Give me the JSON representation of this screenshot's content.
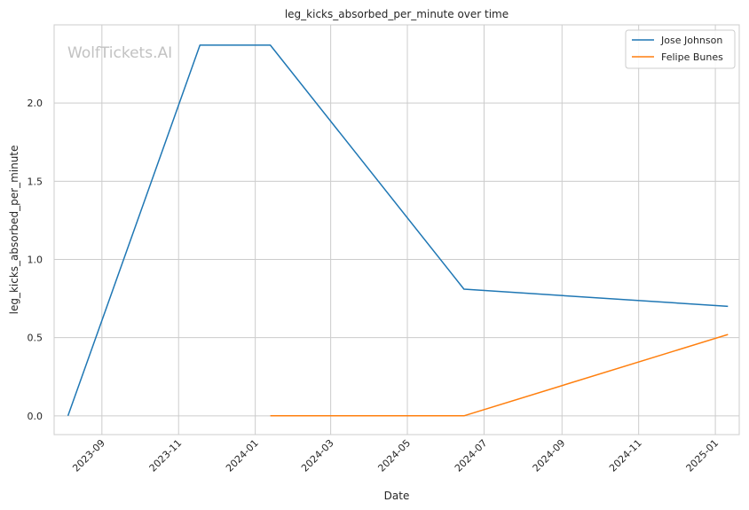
{
  "chart_data": {
    "type": "line",
    "title": "leg_kicks_absorbed_per_minute over time",
    "xlabel": "Date",
    "ylabel": "leg_kicks_absorbed_per_minute",
    "watermark": "WolfTickets.AI",
    "x_ticks": [
      "2023-09",
      "2023-11",
      "2024-01",
      "2024-03",
      "2024-05",
      "2024-07",
      "2024-09",
      "2024-11",
      "2025-01"
    ],
    "y_ticks": [
      "0.0",
      "0.5",
      "1.0",
      "1.5",
      "2.0"
    ],
    "ylim": [
      -0.12,
      2.5
    ],
    "xlim": [
      "2023-07-25",
      "2025-01-20"
    ],
    "grid": true,
    "legend_position": "top-right",
    "series": [
      {
        "name": "Jose Johnson",
        "color": "#1f77b4",
        "points": [
          {
            "x": "2023-08-05",
            "y": 0.0
          },
          {
            "x": "2023-11-18",
            "y": 2.37
          },
          {
            "x": "2024-01-13",
            "y": 2.37
          },
          {
            "x": "2024-06-15",
            "y": 0.81
          },
          {
            "x": "2025-01-11",
            "y": 0.7
          }
        ]
      },
      {
        "name": "Felipe Bunes",
        "color": "#ff7f0e",
        "points": [
          {
            "x": "2024-01-13",
            "y": 0.0
          },
          {
            "x": "2024-06-15",
            "y": 0.0
          },
          {
            "x": "2025-01-11",
            "y": 0.52
          }
        ]
      }
    ]
  }
}
